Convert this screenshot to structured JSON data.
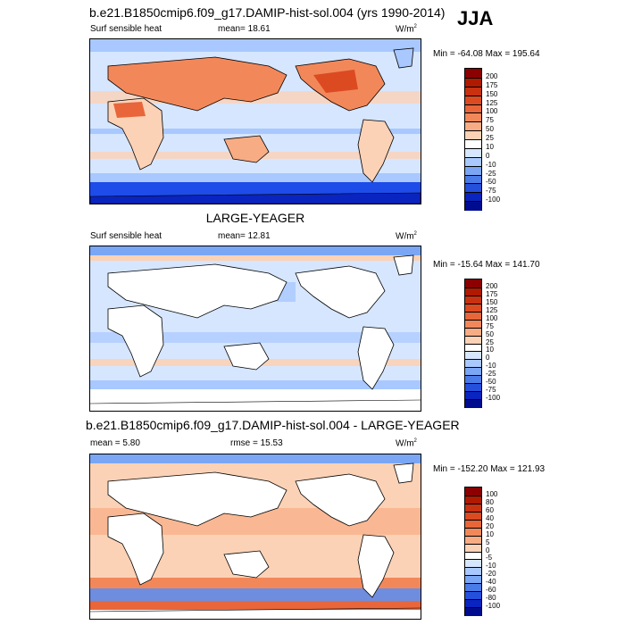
{
  "season": "JJA",
  "panels": [
    {
      "title": "b.e21.B1850cmip6.f09_g17.DAMIP-hist-sol.004 (yrs 1990-2014)",
      "left_label": "Surf sensible heat",
      "center_label": "mean=  18.61",
      "units": "W/m",
      "units_sup": "2",
      "minmax": "Min = -64.08 Max = 195.64",
      "colorbar": {
        "labels": [
          "200",
          "175",
          "150",
          "125",
          "100",
          "75",
          "50",
          "25",
          "10",
          "0",
          "-10",
          "-25",
          "-50",
          "-75",
          "-100"
        ],
        "colors": [
          "#8b0000",
          "#b01a00",
          "#c83210",
          "#dc4a22",
          "#e8663a",
          "#f2885a",
          "#f8ac84",
          "#fcd2b6",
          "#ffffff",
          "#d6e6ff",
          "#a8c8ff",
          "#7aa6f4",
          "#4a7ce8",
          "#2450dc",
          "#0a24c0",
          "#000c90"
        ]
      }
    },
    {
      "title": "LARGE-YEAGER",
      "left_label": "Surf sensible heat",
      "center_label": "mean=  12.81",
      "units": "W/m",
      "units_sup": "2",
      "minmax": "Min = -15.64 Max = 141.70",
      "colorbar": {
        "labels": [
          "200",
          "175",
          "150",
          "125",
          "100",
          "75",
          "50",
          "25",
          "10",
          "0",
          "-10",
          "-25",
          "-50",
          "-75",
          "-100"
        ],
        "colors": [
          "#8b0000",
          "#b01a00",
          "#c83210",
          "#dc4a22",
          "#e8663a",
          "#f2885a",
          "#f8ac84",
          "#fcd2b6",
          "#ffffff",
          "#d6e6ff",
          "#a8c8ff",
          "#7aa6f4",
          "#4a7ce8",
          "#2450dc",
          "#0a24c0",
          "#000c90"
        ]
      }
    },
    {
      "title": "b.e21.B1850cmip6.f09_g17.DAMIP-hist-sol.004 - LARGE-YEAGER",
      "left_label": "mean =   5.80",
      "center_label": "rmse =   15.53",
      "units": "W/m",
      "units_sup": "2",
      "minmax": "Min = -152.20 Max = 121.93",
      "colorbar": {
        "labels": [
          "100",
          "80",
          "60",
          "40",
          "20",
          "10",
          "5",
          "0",
          "-5",
          "-10",
          "-20",
          "-40",
          "-60",
          "-80",
          "-100"
        ],
        "colors": [
          "#8b0000",
          "#b01a00",
          "#c83210",
          "#dc4a22",
          "#e8663a",
          "#f2885a",
          "#f8ac84",
          "#fcd2b6",
          "#ffffff",
          "#d6e6ff",
          "#a8c8ff",
          "#7aa6f4",
          "#4a7ce8",
          "#2450dc",
          "#0a24c0",
          "#000c90"
        ]
      }
    }
  ]
}
